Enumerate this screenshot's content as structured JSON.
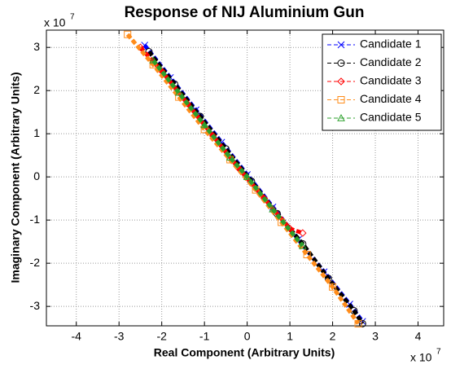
{
  "chart_data": {
    "type": "line",
    "title": "Response of NIJ Aluminium Gun",
    "x_label": "Real Component (Arbitrary Units)",
    "y_label": "Imaginary Component (Arbitrary Units)",
    "x_multiplier": {
      "base": "x 10",
      "exponent": "7"
    },
    "y_multiplier": {
      "base": "x 10",
      "exponent": "7"
    },
    "xlim": [
      -4.7,
      4.6
    ],
    "ylim": [
      -3.45,
      3.4
    ],
    "xticks": [
      -4,
      -3,
      -2,
      -1,
      0,
      1,
      2,
      3,
      4
    ],
    "yticks": [
      -3,
      -2,
      -1,
      0,
      1,
      2,
      3
    ],
    "grid": true,
    "legend": "upper right",
    "series": [
      {
        "name": "Candidate 1",
        "color": "#0000ff",
        "marker": "x",
        "x": [
          -2.4,
          -1.8,
          -1.2,
          -0.6,
          0,
          0.6,
          1.2,
          1.8,
          2.4,
          2.7
        ],
        "values": [
          3.05,
          2.3,
          1.55,
          0.8,
          0.05,
          -0.7,
          -1.45,
          -2.2,
          -2.95,
          -3.35
        ]
      },
      {
        "name": "Candidate 2",
        "color": "#000000",
        "marker": "o",
        "x": [
          -2.3,
          -1.7,
          -1.1,
          -0.5,
          0.1,
          0.7,
          1.3,
          1.9,
          2.5,
          2.7
        ],
        "values": [
          2.9,
          2.15,
          1.4,
          0.65,
          -0.1,
          -0.85,
          -1.55,
          -2.35,
          -3.1,
          -3.4
        ]
      },
      {
        "name": "Candidate 3",
        "color": "#ff0000",
        "marker": "diamond",
        "x": [
          -2.5,
          -2.0,
          -1.4,
          -0.8,
          -0.2,
          0.4,
          1.0,
          1.3
        ],
        "values": [
          3.0,
          2.45,
          1.7,
          0.95,
          0.2,
          -0.5,
          -1.2,
          -1.3
        ]
      },
      {
        "name": "Candidate 4",
        "color": "#ff8c1a",
        "marker": "square",
        "x": [
          -2.8,
          -2.2,
          -1.6,
          -1.0,
          -0.4,
          0.2,
          0.8,
          1.4,
          2.0,
          2.6
        ],
        "values": [
          3.3,
          2.6,
          1.85,
          1.1,
          0.4,
          -0.3,
          -1.05,
          -1.8,
          -2.55,
          -3.4
        ]
      },
      {
        "name": "Candidate 5",
        "color": "#2ca02c",
        "marker": "triangle",
        "x": [
          -2.2,
          -1.6,
          -1.0,
          -0.4,
          0,
          0.6,
          1.3
        ],
        "values": [
          2.7,
          1.95,
          1.2,
          0.45,
          0,
          -0.75,
          -1.6
        ]
      }
    ]
  }
}
